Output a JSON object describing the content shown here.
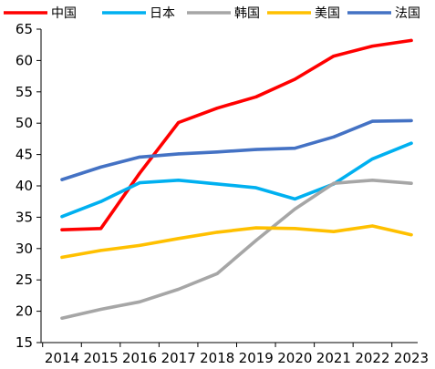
{
  "chart_data": {
    "type": "line",
    "title": "",
    "xlabel": "",
    "ylabel": "",
    "x": [
      2014,
      2015,
      2016,
      2017,
      2018,
      2019,
      2020,
      2021,
      2022,
      2023
    ],
    "x_tick_labels": [
      "2014",
      "2015",
      "2016",
      "2017",
      "2018",
      "2019",
      "2020",
      "2021",
      "2022",
      "2023"
    ],
    "ylim": [
      15,
      65
    ],
    "y_ticks": [
      15,
      20,
      25,
      30,
      35,
      40,
      45,
      50,
      55,
      60,
      65
    ],
    "y_tick_labels": [
      "15",
      "20",
      "25",
      "30",
      "35",
      "40",
      "45",
      "50",
      "55",
      "60",
      "65"
    ],
    "grid": false,
    "legend_position": "top",
    "series": [
      {
        "name": "中国",
        "color": "#FF0000",
        "values": [
          33.0,
          33.2,
          42.0,
          50.1,
          52.4,
          54.2,
          57.0,
          60.7,
          62.3,
          63.2
        ]
      },
      {
        "name": "日本",
        "color": "#00B0F0",
        "values": [
          35.1,
          37.5,
          40.5,
          40.9,
          40.3,
          39.7,
          37.9,
          40.3,
          44.3,
          46.8
        ]
      },
      {
        "name": "韩国",
        "color": "#A6A6A6",
        "values": [
          18.9,
          20.3,
          21.5,
          23.5,
          26.0,
          31.3,
          36.3,
          40.4,
          40.9,
          40.4
        ]
      },
      {
        "name": "美国",
        "color": "#FFC000",
        "values": [
          28.6,
          29.7,
          30.5,
          31.6,
          32.6,
          33.3,
          33.2,
          32.7,
          33.6,
          32.2
        ]
      },
      {
        "name": "法国",
        "color": "#4472C4",
        "values": [
          41.0,
          43.0,
          44.6,
          45.1,
          45.4,
          45.8,
          46.0,
          47.8,
          50.3,
          50.4
        ]
      }
    ]
  }
}
